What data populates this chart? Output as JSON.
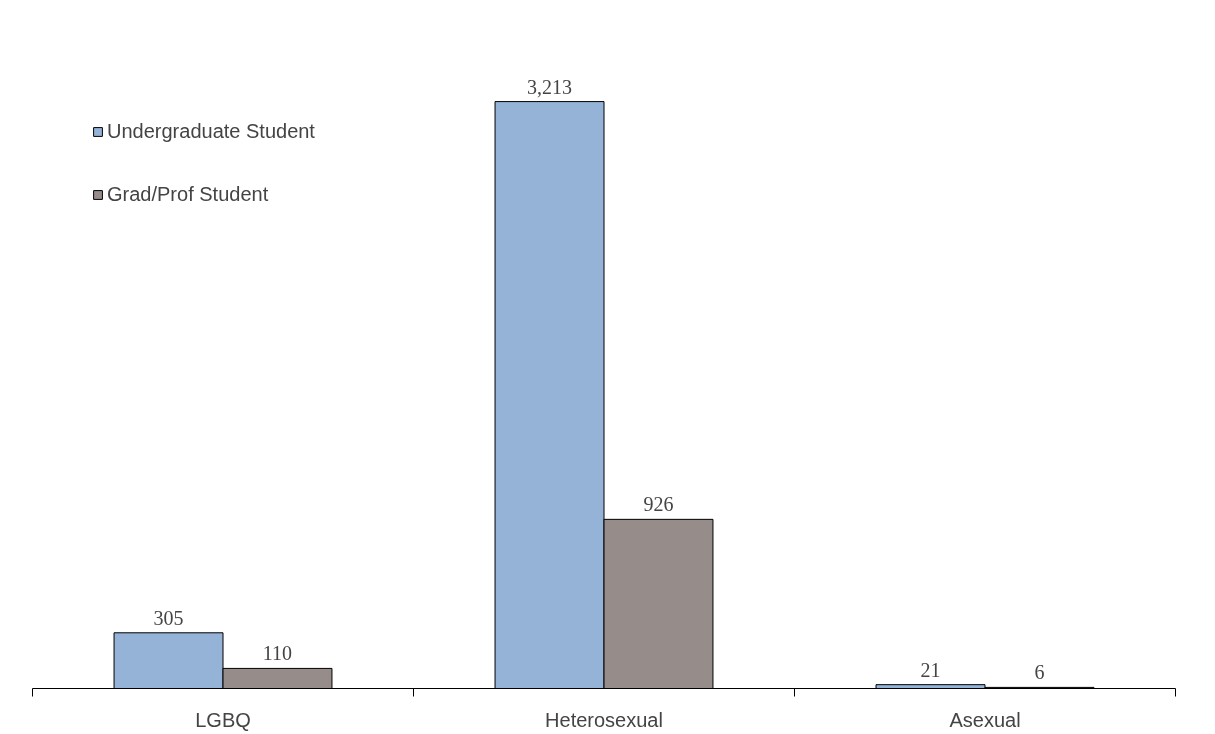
{
  "chart_data": {
    "type": "bar",
    "categories": [
      "LGBQ",
      "Heterosexual",
      "Asexual"
    ],
    "series": [
      {
        "name": "Undergraduate Student",
        "color": "#95b3d7",
        "values": [
          305,
          3213,
          21
        ],
        "value_labels": [
          "305",
          "3,213",
          "21"
        ]
      },
      {
        "name": "Grad/Prof Student",
        "color": "#968d8a",
        "values": [
          110,
          926,
          6
        ],
        "value_labels": [
          "110",
          "926",
          "6"
        ]
      }
    ],
    "legend": "top left",
    "grid": false
  }
}
